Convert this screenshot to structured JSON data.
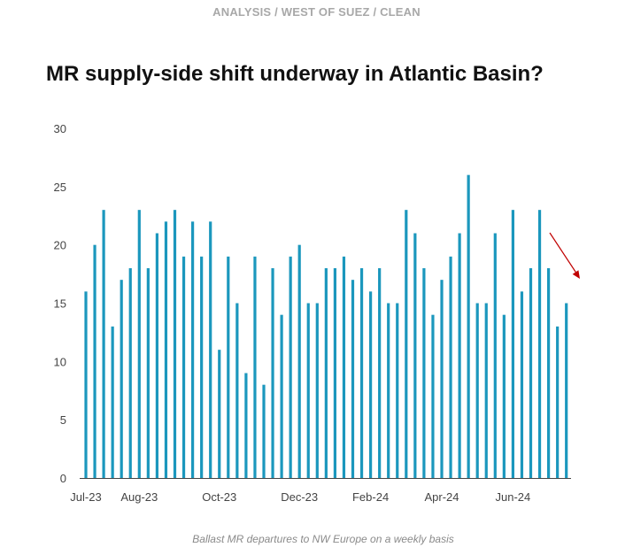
{
  "header": {
    "kicker": "ANALYSIS / WEST OF SUEZ / CLEAN",
    "title": "MR supply-side shift underway in Atlantic Basin?"
  },
  "caption": "Ballast MR departures to NW Europe on a weekly basis",
  "colors": {
    "bar": "#1b97bd",
    "axis": "#444444",
    "arrow": "#c00000",
    "kicker": "#a8a8a8",
    "caption": "#8a8a8a"
  },
  "chart_data": {
    "type": "bar",
    "title": "MR supply-side shift underway in Atlantic Basin?",
    "xlabel": "",
    "ylabel": "",
    "ylim": [
      0,
      30
    ],
    "yticks": [
      0,
      5,
      10,
      15,
      20,
      25,
      30
    ],
    "grid": false,
    "x_tick_labels": [
      "Jul-23",
      "Aug-23",
      "Oct-23",
      "Dec-23",
      "Feb-24",
      "Apr-24",
      "Jun-24"
    ],
    "x_tick_positions": [
      0,
      6,
      15,
      24,
      32,
      40,
      48
    ],
    "values": [
      16,
      20,
      23,
      13,
      17,
      18,
      23,
      18,
      21,
      22,
      23,
      19,
      22,
      19,
      22,
      11,
      19,
      15,
      9,
      19,
      8,
      18,
      14,
      19,
      20,
      15,
      15,
      18,
      18,
      19,
      17,
      18,
      16,
      18,
      15,
      15,
      23,
      21,
      18,
      14,
      17,
      19,
      21,
      26,
      15,
      15,
      21,
      14,
      23,
      16,
      18,
      23,
      18,
      13,
      15
    ],
    "annotations": [
      {
        "type": "arrow",
        "direction": "down-right",
        "note": "decline at end of series"
      }
    ]
  }
}
